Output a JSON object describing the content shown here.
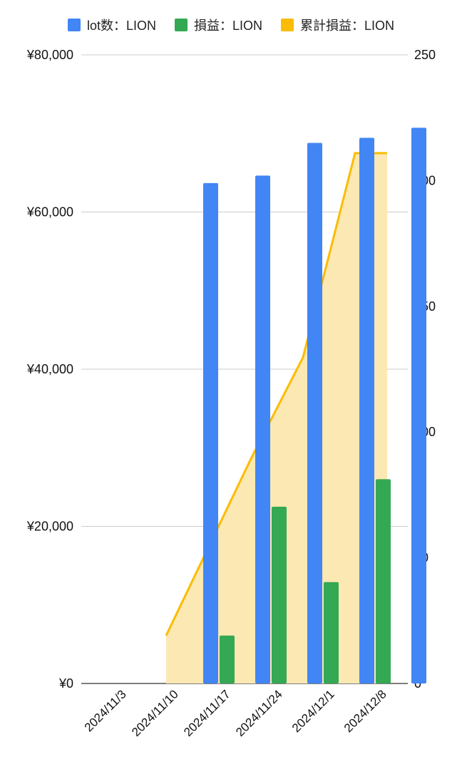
{
  "chart_data": {
    "type": "bar",
    "categories": [
      "2024/11/3",
      "2024/11/10",
      "2024/11/17",
      "2024/11/24",
      "2024/12/1",
      "2024/12/8"
    ],
    "series": [
      {
        "name": "lot数：LION",
        "kind": "bar",
        "axis": "right",
        "color": "#4285f4",
        "values": [
          0,
          199,
          202,
          215,
          217,
          221
        ]
      },
      {
        "name": "損益：LION",
        "kind": "bar",
        "axis": "left",
        "color": "#34a853",
        "values": [
          0,
          6100,
          22500,
          12900,
          26000,
          0
        ]
      },
      {
        "name": "累計損益：LION",
        "kind": "area",
        "axis": "left",
        "color": "#fbbc04",
        "fill": "#fce8b2",
        "values": [
          null,
          6100,
          28600,
          41500,
          67500,
          67500
        ]
      }
    ],
    "y_left": {
      "ticks": [
        "¥0",
        "¥20,000",
        "¥40,000",
        "¥60,000",
        "¥80,000"
      ],
      "tick_values": [
        0,
        20000,
        40000,
        60000,
        80000
      ],
      "range": [
        0,
        80000
      ]
    },
    "y_right": {
      "ticks": [
        "0",
        "50",
        "100",
        "150",
        "200",
        "250"
      ],
      "tick_values": [
        0,
        50,
        100,
        150,
        200,
        250
      ],
      "range": [
        0,
        250
      ]
    },
    "grid": true,
    "legend_position": "top",
    "title": "",
    "xlabel": "",
    "ylabel": ""
  }
}
